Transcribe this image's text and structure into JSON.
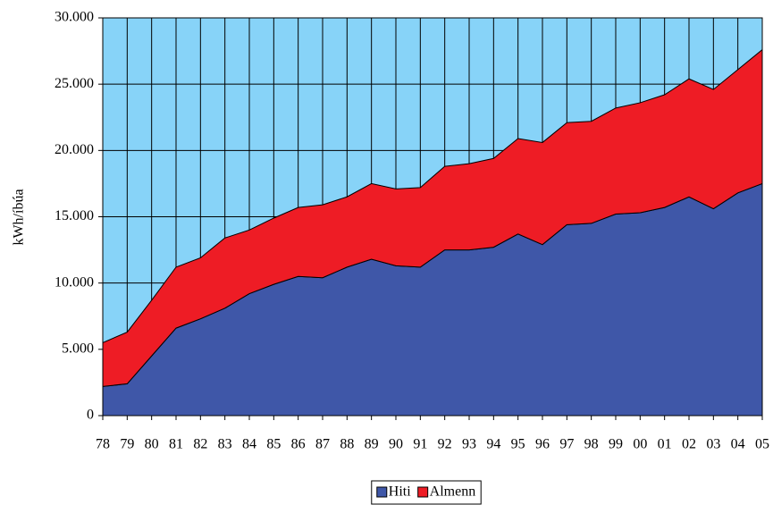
{
  "chart_data": {
    "type": "stacked_area",
    "ylabel": "kWh/íbúa",
    "categories": [
      "78",
      "79",
      "80",
      "81",
      "82",
      "83",
      "84",
      "85",
      "86",
      "87",
      "88",
      "89",
      "90",
      "91",
      "92",
      "93",
      "94",
      "95",
      "96",
      "97",
      "98",
      "99",
      "00",
      "01",
      "02",
      "03",
      "04",
      "05"
    ],
    "series": [
      {
        "name": "Hiti",
        "color": "#3f57a8",
        "values": [
          2200,
          2400,
          4500,
          6600,
          7300,
          8100,
          9200,
          9900,
          10500,
          10400,
          11200,
          11800,
          11300,
          11200,
          12500,
          12500,
          12700,
          13700,
          12900,
          14400,
          14500,
          15200,
          15300,
          15700,
          16500,
          15600,
          16800,
          17500
        ]
      },
      {
        "name": "Almenn",
        "color": "#ee1c25",
        "values": [
          3300,
          3900,
          4200,
          4600,
          4600,
          5300,
          4800,
          5000,
          5200,
          5500,
          5300,
          5700,
          5800,
          6000,
          6300,
          6500,
          6700,
          7200,
          7700,
          7700,
          7700,
          8000,
          8300,
          8500,
          8900,
          9000,
          9300,
          10100
        ]
      }
    ],
    "ylim": [
      0,
      30000
    ],
    "yticks": [
      0,
      {
        "value": 5000,
        "label": "5.000"
      },
      {
        "value": 10000,
        "label": "10.000"
      },
      {
        "value": 15000,
        "label": "15.000"
      },
      {
        "value": 20000,
        "label": "20.000"
      },
      {
        "value": 25000,
        "label": "25.000"
      },
      {
        "value": 30000,
        "label": "30.000"
      }
    ],
    "grid": true,
    "background": "#87d3f8",
    "legend": "bottom"
  }
}
